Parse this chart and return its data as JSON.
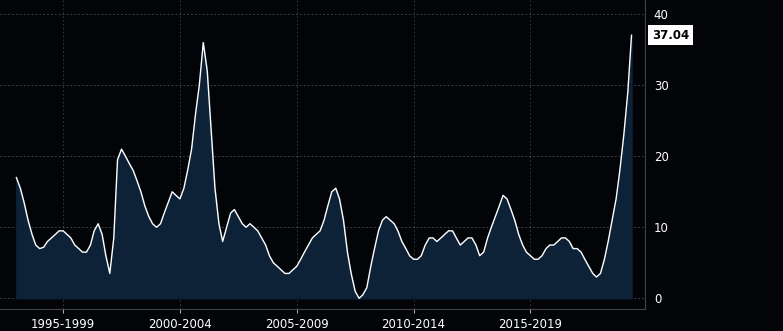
{
  "background_color": "#020408",
  "plot_bg_color": "#020408",
  "fill_color": "#0d2137",
  "line_color": "#ffffff",
  "grid_color": "#ffffff",
  "axis_label_color": "#ffffff",
  "last_value_label": "37.04",
  "last_value_bg": "#ffffff",
  "last_value_text_color": "#000000",
  "yticks": [
    0,
    10,
    20,
    30,
    40
  ],
  "ylim": [
    -1.5,
    42
  ],
  "xlim": [
    1994.3,
    2021.9
  ],
  "x_tick_positions": [
    1997.0,
    2002.0,
    2007.0,
    2012.0,
    2017.0
  ],
  "x_tick_labels": [
    "1995-1999",
    "2000-2004",
    "2005-2009",
    "2010-2014",
    "2015-2019"
  ],
  "years": [
    1995.0,
    1995.17,
    1995.33,
    1995.5,
    1995.67,
    1995.83,
    1996.0,
    1996.17,
    1996.33,
    1996.5,
    1996.67,
    1996.83,
    1997.0,
    1997.17,
    1997.33,
    1997.5,
    1997.67,
    1997.83,
    1998.0,
    1998.17,
    1998.33,
    1998.5,
    1998.67,
    1998.83,
    1999.0,
    1999.17,
    1999.33,
    1999.5,
    1999.67,
    1999.83,
    2000.0,
    2000.17,
    2000.33,
    2000.5,
    2000.67,
    2000.83,
    2001.0,
    2001.17,
    2001.33,
    2001.5,
    2001.67,
    2001.83,
    2002.0,
    2002.17,
    2002.33,
    2002.5,
    2002.67,
    2002.83,
    2003.0,
    2003.17,
    2003.33,
    2003.5,
    2003.67,
    2003.83,
    2004.0,
    2004.17,
    2004.33,
    2004.5,
    2004.67,
    2004.83,
    2005.0,
    2005.17,
    2005.33,
    2005.5,
    2005.67,
    2005.83,
    2006.0,
    2006.17,
    2006.33,
    2006.5,
    2006.67,
    2006.83,
    2007.0,
    2007.17,
    2007.33,
    2007.5,
    2007.67,
    2007.83,
    2008.0,
    2008.17,
    2008.33,
    2008.5,
    2008.67,
    2008.83,
    2009.0,
    2009.17,
    2009.33,
    2009.5,
    2009.67,
    2009.83,
    2010.0,
    2010.17,
    2010.33,
    2010.5,
    2010.67,
    2010.83,
    2011.0,
    2011.17,
    2011.33,
    2011.5,
    2011.67,
    2011.83,
    2012.0,
    2012.17,
    2012.33,
    2012.5,
    2012.67,
    2012.83,
    2013.0,
    2013.17,
    2013.33,
    2013.5,
    2013.67,
    2013.83,
    2014.0,
    2014.17,
    2014.33,
    2014.5,
    2014.67,
    2014.83,
    2015.0,
    2015.17,
    2015.33,
    2015.5,
    2015.67,
    2015.83,
    2016.0,
    2016.17,
    2016.33,
    2016.5,
    2016.67,
    2016.83,
    2017.0,
    2017.17,
    2017.33,
    2017.5,
    2017.67,
    2017.83,
    2018.0,
    2018.17,
    2018.33,
    2018.5,
    2018.67,
    2018.83,
    2019.0,
    2019.17,
    2019.33,
    2019.5,
    2019.67,
    2019.83,
    2020.0,
    2020.17,
    2020.33,
    2020.5,
    2020.67,
    2020.83,
    2021.0,
    2021.17,
    2021.33
  ],
  "values": [
    17.0,
    15.5,
    13.5,
    11.0,
    9.0,
    7.5,
    7.0,
    7.2,
    8.0,
    8.5,
    9.0,
    9.5,
    9.5,
    9.0,
    8.5,
    7.5,
    7.0,
    6.5,
    6.5,
    7.5,
    9.5,
    10.5,
    9.0,
    6.0,
    3.5,
    8.5,
    19.5,
    21.0,
    20.0,
    19.0,
    18.0,
    16.5,
    15.0,
    13.0,
    11.5,
    10.5,
    10.0,
    10.5,
    12.0,
    13.5,
    15.0,
    14.5,
    14.0,
    15.5,
    18.0,
    21.0,
    26.0,
    30.0,
    36.0,
    32.0,
    24.0,
    15.5,
    10.5,
    8.0,
    10.0,
    12.0,
    12.5,
    11.5,
    10.5,
    10.0,
    10.5,
    10.0,
    9.5,
    8.5,
    7.5,
    6.0,
    5.0,
    4.5,
    4.0,
    3.5,
    3.5,
    4.0,
    4.5,
    5.5,
    6.5,
    7.5,
    8.5,
    9.0,
    9.5,
    11.0,
    13.0,
    15.0,
    15.5,
    14.0,
    11.0,
    6.5,
    3.5,
    1.0,
    0.0,
    0.5,
    1.5,
    4.5,
    7.0,
    9.5,
    11.0,
    11.5,
    11.0,
    10.5,
    9.5,
    8.0,
    7.0,
    6.0,
    5.5,
    5.5,
    6.0,
    7.5,
    8.5,
    8.5,
    8.0,
    8.5,
    9.0,
    9.5,
    9.5,
    8.5,
    7.5,
    8.0,
    8.5,
    8.5,
    7.5,
    6.0,
    6.5,
    8.5,
    10.0,
    11.5,
    13.0,
    14.5,
    14.0,
    12.5,
    11.0,
    9.0,
    7.5,
    6.5,
    6.0,
    5.5,
    5.5,
    6.0,
    7.0,
    7.5,
    7.5,
    8.0,
    8.5,
    8.5,
    8.0,
    7.0,
    7.0,
    6.5,
    5.5,
    4.5,
    3.5,
    3.0,
    3.5,
    5.5,
    8.0,
    11.0,
    14.0,
    18.0,
    23.0,
    29.0,
    37.04
  ]
}
